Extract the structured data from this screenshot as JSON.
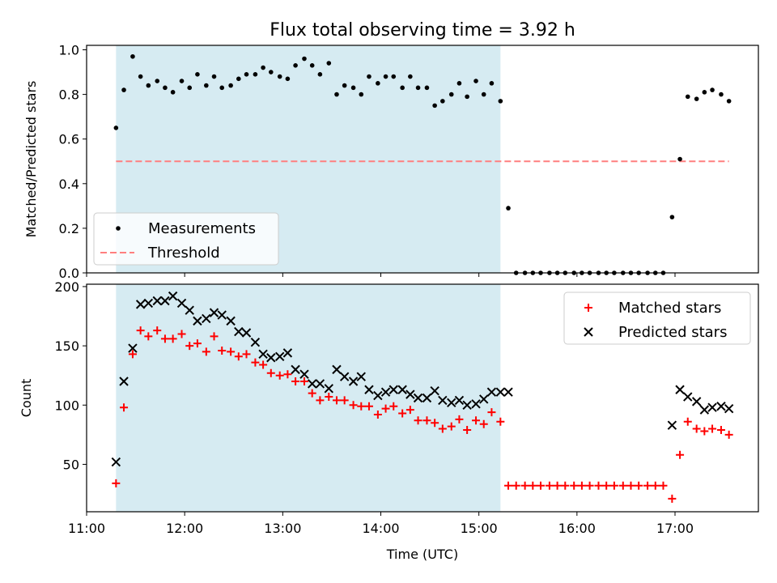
{
  "title": "Flux total observing time = 3.92 h",
  "colors": {
    "shade": "#add8e6",
    "measurement": "#000000",
    "threshold": "#ff7f7f",
    "matched": "#ff0000",
    "predicted": "#000000"
  },
  "chart_data": [
    {
      "type": "scatter",
      "ylabel": "Matched/Predicted stars",
      "xlim": [
        11.0,
        17.85
      ],
      "ylim": [
        0.0,
        1.02
      ],
      "yticks": [
        0.0,
        0.2,
        0.4,
        0.6,
        0.8,
        1.0
      ],
      "ytick_labels": [
        "0.0",
        "0.2",
        "0.4",
        "0.6",
        "0.8",
        "1.0"
      ],
      "shaded_span": [
        11.3,
        15.22
      ],
      "legend": {
        "placement": "lower-left",
        "entries": [
          "Measurements",
          "Threshold"
        ]
      },
      "threshold": {
        "name": "Threshold",
        "y": 0.5,
        "x": [
          11.3,
          17.55
        ]
      },
      "series": [
        {
          "name": "Measurements",
          "x": [
            11.3,
            11.38,
            11.47,
            11.55,
            11.63,
            11.72,
            11.8,
            11.88,
            11.97,
            12.05,
            12.13,
            12.22,
            12.3,
            12.38,
            12.47,
            12.55,
            12.63,
            12.72,
            12.8,
            12.88,
            12.97,
            13.05,
            13.13,
            13.22,
            13.3,
            13.38,
            13.47,
            13.55,
            13.63,
            13.72,
            13.8,
            13.88,
            13.97,
            14.05,
            14.13,
            14.22,
            14.3,
            14.38,
            14.47,
            14.55,
            14.63,
            14.72,
            14.8,
            14.88,
            14.97,
            15.05,
            15.13,
            15.22,
            15.3,
            15.38,
            15.47,
            15.55,
            15.63,
            15.72,
            15.8,
            15.88,
            15.97,
            16.05,
            16.13,
            16.22,
            16.3,
            16.38,
            16.47,
            16.55,
            16.63,
            16.72,
            16.8,
            16.88,
            16.97,
            17.05,
            17.13,
            17.22,
            17.3,
            17.38,
            17.47,
            17.55
          ],
          "y": [
            0.65,
            0.82,
            0.97,
            0.88,
            0.84,
            0.86,
            0.83,
            0.81,
            0.86,
            0.83,
            0.89,
            0.84,
            0.88,
            0.83,
            0.84,
            0.87,
            0.89,
            0.89,
            0.92,
            0.9,
            0.88,
            0.87,
            0.93,
            0.96,
            0.93,
            0.89,
            0.94,
            0.8,
            0.84,
            0.83,
            0.8,
            0.88,
            0.85,
            0.88,
            0.88,
            0.83,
            0.88,
            0.83,
            0.83,
            0.75,
            0.77,
            0.8,
            0.85,
            0.79,
            0.86,
            0.8,
            0.85,
            0.77,
            0.29,
            0.0,
            0.0,
            0.0,
            0.0,
            0.0,
            0.0,
            0.0,
            0.0,
            0.0,
            0.0,
            0.0,
            0.0,
            0.0,
            0.0,
            0.0,
            0.0,
            0.0,
            0.0,
            0.0,
            0.25,
            0.51,
            0.79,
            0.78,
            0.81,
            0.82,
            0.8,
            0.77
          ]
        }
      ]
    },
    {
      "type": "scatter",
      "ylabel": "Count",
      "xlabel": "Time (UTC)",
      "xlim": [
        11.0,
        17.85
      ],
      "ylim": [
        10,
        202
      ],
      "yticks": [
        50,
        100,
        150,
        200
      ],
      "ytick_labels": [
        "50",
        "100",
        "150",
        "200"
      ],
      "xticks": [
        11,
        12,
        13,
        14,
        15,
        16,
        17
      ],
      "xtick_labels": [
        "11:00",
        "12:00",
        "13:00",
        "14:00",
        "15:00",
        "16:00",
        "17:00"
      ],
      "shaded_span": [
        11.3,
        15.22
      ],
      "legend": {
        "placement": "upper-right",
        "entries": [
          "Matched stars",
          "Predicted stars"
        ]
      },
      "series": [
        {
          "name": "Matched stars",
          "marker": "plus",
          "x": [
            11.3,
            11.38,
            11.47,
            11.55,
            11.63,
            11.72,
            11.8,
            11.88,
            11.97,
            12.05,
            12.13,
            12.22,
            12.3,
            12.38,
            12.47,
            12.55,
            12.63,
            12.72,
            12.8,
            12.88,
            12.97,
            13.05,
            13.13,
            13.22,
            13.3,
            13.38,
            13.47,
            13.55,
            13.63,
            13.72,
            13.8,
            13.88,
            13.97,
            14.05,
            14.13,
            14.22,
            14.3,
            14.38,
            14.47,
            14.55,
            14.63,
            14.72,
            14.8,
            14.88,
            14.97,
            15.05,
            15.13,
            15.22,
            15.3,
            15.38,
            15.47,
            15.55,
            15.63,
            15.72,
            15.8,
            15.88,
            15.97,
            16.05,
            16.13,
            16.22,
            16.3,
            16.38,
            16.47,
            16.55,
            16.63,
            16.72,
            16.8,
            16.88,
            16.97,
            17.05,
            17.13,
            17.22,
            17.3,
            17.38,
            17.47,
            17.55
          ],
          "y": [
            34,
            98,
            143,
            163,
            158,
            163,
            156,
            156,
            160,
            150,
            152,
            145,
            158,
            146,
            145,
            141,
            143,
            136,
            134,
            127,
            125,
            126,
            120,
            120,
            110,
            104,
            107,
            104,
            104,
            100,
            99,
            99,
            92,
            97,
            99,
            93,
            96,
            87,
            87,
            85,
            80,
            82,
            88,
            79,
            87,
            84,
            94,
            86,
            32,
            32,
            32,
            32,
            32,
            32,
            32,
            32,
            32,
            32,
            32,
            32,
            32,
            32,
            32,
            32,
            32,
            32,
            32,
            32,
            21,
            58,
            86,
            80,
            78,
            80,
            79,
            75
          ]
        },
        {
          "name": "Predicted stars",
          "marker": "x",
          "x": [
            11.3,
            11.38,
            11.47,
            11.55,
            11.63,
            11.72,
            11.8,
            11.88,
            11.97,
            12.05,
            12.13,
            12.22,
            12.3,
            12.38,
            12.47,
            12.55,
            12.63,
            12.72,
            12.8,
            12.88,
            12.97,
            13.05,
            13.13,
            13.22,
            13.3,
            13.38,
            13.47,
            13.55,
            13.63,
            13.72,
            13.8,
            13.88,
            13.97,
            14.05,
            14.13,
            14.22,
            14.3,
            14.38,
            14.47,
            14.55,
            14.63,
            14.72,
            14.8,
            14.88,
            14.97,
            15.05,
            15.13,
            15.22,
            15.3,
            16.97,
            17.05,
            17.13,
            17.22,
            17.3,
            17.38,
            17.47,
            17.55
          ],
          "y": [
            52,
            120,
            148,
            185,
            186,
            188,
            188,
            192,
            186,
            180,
            171,
            173,
            178,
            176,
            171,
            162,
            161,
            153,
            143,
            140,
            141,
            144,
            130,
            126,
            118,
            118,
            114,
            130,
            124,
            120,
            124,
            113,
            108,
            111,
            113,
            113,
            109,
            106,
            106,
            112,
            104,
            102,
            104,
            100,
            101,
            105,
            111,
            111,
            111,
            83,
            113,
            107,
            103,
            96,
            98,
            99,
            97
          ]
        }
      ]
    }
  ]
}
